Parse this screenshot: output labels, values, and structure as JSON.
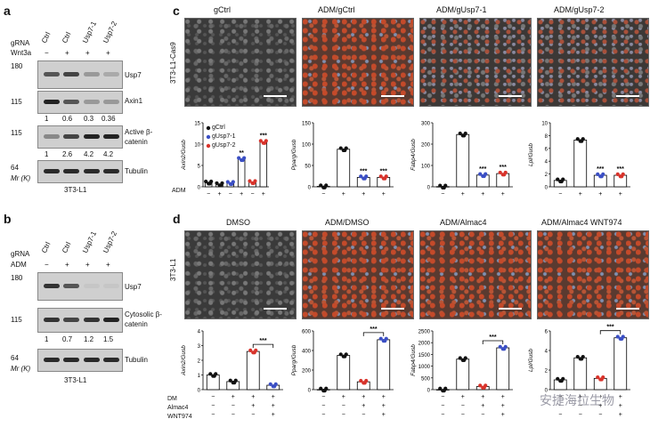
{
  "panel_letters": {
    "a": "a",
    "b": "b",
    "c": "c",
    "d": "d"
  },
  "panel_a": {
    "row1": "gRNA",
    "row2": "Wnt3a",
    "lanes": [
      "Ctrl",
      "Ctrl",
      "Usp7-1",
      "Usp7-2"
    ],
    "treat": [
      "−",
      "+",
      "+",
      "+"
    ],
    "mw": [
      "180",
      "115",
      "115",
      "64"
    ],
    "blots": [
      "Usp7",
      "Axin1",
      "Active β-catenin",
      "Tubulin"
    ],
    "ratio1": [
      "1",
      "0.6",
      "0.3",
      "0.36"
    ],
    "ratio2": [
      "1",
      "2.6",
      "4.2",
      "4.2"
    ],
    "mr": "Mr (K)",
    "cell": "3T3-L1"
  },
  "panel_b": {
    "row1": "gRNA",
    "row2": "ADM",
    "lanes": [
      "Ctrl",
      "Ctrl",
      "Usp7-1",
      "Usp7-2"
    ],
    "treat": [
      "−",
      "+",
      "+",
      "+"
    ],
    "mw": [
      "180",
      "115",
      "64"
    ],
    "blots": [
      "Usp7",
      "Cytosolic β-catenin",
      "Tubulin"
    ],
    "ratio": [
      "1",
      "0.7",
      "1.2",
      "1.5"
    ],
    "mr": "Mr (K)",
    "cell": "3T3-L1"
  },
  "panel_c": {
    "side": "3T3-L1-Cas9",
    "images": [
      "gCtrl",
      "ADM/gCtrl",
      "ADM/gUsp7-1",
      "ADM/gUsp7-2"
    ],
    "legend": [
      "gCtrl",
      "gUsp7-1",
      "gUsp7-2"
    ],
    "xrow": "ADM"
  },
  "panel_d": {
    "side": "3T3-L1",
    "images": [
      "DMSO",
      "ADM/DMSO",
      "ADM/Almac4",
      "ADM/Almac4 WNT974"
    ],
    "xrows": [
      "DM",
      "Almac4",
      "WNT974"
    ]
  },
  "colors": {
    "ctrl": "#111111",
    "g1": "#3b4fc4",
    "g2": "#d8332b"
  },
  "watermark": "安捷海拉生物",
  "chart_data": [
    {
      "type": "bar",
      "panel": "c",
      "ylabel": "Axin2/Gusb",
      "ylim": [
        0,
        15
      ],
      "ticks": [
        0,
        5,
        10,
        15
      ],
      "categories": [
        "−",
        "+",
        "−",
        "+",
        "−",
        "+"
      ],
      "values": [
        1,
        0.6,
        0.9,
        6.5,
        1.1,
        10.5
      ],
      "sig": [
        "",
        "",
        "",
        "**",
        "",
        "***"
      ]
    },
    {
      "type": "bar",
      "panel": "c",
      "ylabel": "Pparg/Gusb",
      "ylim": [
        0,
        150
      ],
      "ticks": [
        0,
        50,
        100,
        150
      ],
      "categories": [
        "−",
        "+",
        "+",
        "+"
      ],
      "values": [
        1,
        88,
        22,
        22
      ],
      "sig": [
        "",
        "",
        "***",
        "***"
      ]
    },
    {
      "type": "bar",
      "panel": "c",
      "ylabel": "Fabp4/Gusb",
      "ylim": [
        0,
        300
      ],
      "ticks": [
        0,
        100,
        200,
        300
      ],
      "categories": [
        "−",
        "+",
        "+",
        "+"
      ],
      "values": [
        1,
        245,
        55,
        62
      ],
      "sig": [
        "",
        "",
        "***",
        "***"
      ]
    },
    {
      "type": "bar",
      "panel": "c",
      "ylabel": "Lpl/Gusb",
      "ylim": [
        0,
        10
      ],
      "ticks": [
        0,
        2,
        4,
        6,
        8,
        10
      ],
      "categories": [
        "−",
        "+",
        "+",
        "+"
      ],
      "values": [
        1,
        7.3,
        1.8,
        1.8
      ],
      "sig": [
        "",
        "",
        "***",
        "***"
      ]
    },
    {
      "type": "bar",
      "panel": "d",
      "ylabel": "Axin2/Gusb",
      "ylim": [
        0,
        4
      ],
      "ticks": [
        0,
        1,
        2,
        3,
        4
      ],
      "rows": [
        [
          "−",
          "+",
          "+",
          "+"
        ],
        [
          "−",
          "−",
          "+",
          "+"
        ],
        [
          "−",
          "−",
          "−",
          "+"
        ]
      ],
      "values": [
        1,
        0.55,
        2.6,
        0.3
      ],
      "sig": "***"
    },
    {
      "type": "bar",
      "panel": "d",
      "ylabel": "Pparg/Gusb",
      "ylim": [
        0,
        600
      ],
      "ticks": [
        0,
        200,
        400,
        600
      ],
      "rows": [
        [
          "−",
          "+",
          "+",
          "+"
        ],
        [
          "−",
          "−",
          "+",
          "+"
        ],
        [
          "−",
          "−",
          "−",
          "+"
        ]
      ],
      "values": [
        1,
        350,
        80,
        510
      ],
      "sig": "***"
    },
    {
      "type": "bar",
      "panel": "d",
      "ylabel": "Fabp4/Gusb",
      "ylim": [
        0,
        2500
      ],
      "ticks": [
        0,
        500,
        1000,
        1500,
        2000,
        2500
      ],
      "rows": [
        [
          "−",
          "+",
          "+",
          "+"
        ],
        [
          "−",
          "−",
          "+",
          "+"
        ],
        [
          "−",
          "−",
          "−",
          "+"
        ]
      ],
      "values": [
        1,
        1300,
        130,
        1780
      ],
      "sig": "***"
    },
    {
      "type": "bar",
      "panel": "d",
      "ylabel": "Lpl/Gusb",
      "ylim": [
        0,
        6
      ],
      "ticks": [
        0,
        2,
        4,
        6
      ],
      "rows": [
        [
          "−",
          "+",
          "+",
          "+"
        ],
        [
          "−",
          "−",
          "+",
          "+"
        ],
        [
          "−",
          "−",
          "−",
          "+"
        ]
      ],
      "values": [
        1,
        3.25,
        1.15,
        5.3
      ],
      "sig": "***"
    }
  ]
}
